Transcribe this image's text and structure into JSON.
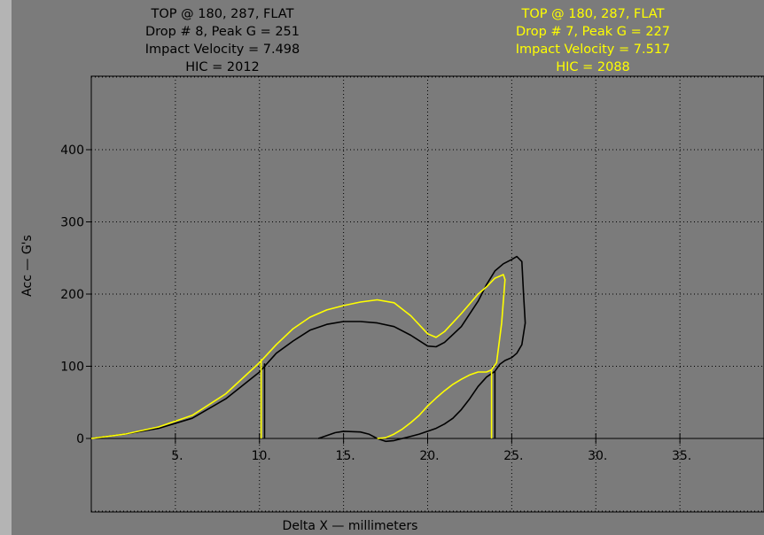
{
  "header": {
    "left": {
      "line1": "TOP @ 180, 287, FLAT",
      "line2": "Drop # 8, Peak G = 251",
      "line3": "Impact Velocity = 7.498",
      "line4": "HIC = 2012",
      "color": "#000000"
    },
    "right": {
      "line1": "TOP @ 180, 287, FLAT",
      "line2": "Drop # 7, Peak G = 227",
      "line3": "Impact Velocity = 7.517",
      "line4": "HIC = 2088",
      "color": "#ffff00"
    }
  },
  "chart_data": {
    "type": "line",
    "xlabel": "Delta X — millimeters",
    "ylabel": "Acc — G's",
    "xlim": [
      0,
      40
    ],
    "ylim": [
      -110,
      500
    ],
    "x_ticks": [
      5,
      10,
      15,
      20,
      25,
      30,
      35
    ],
    "x_tick_labels": [
      "5.",
      "10.",
      "15.",
      "20.",
      "25.",
      "30.",
      "35."
    ],
    "y_ticks": [
      0,
      100,
      200,
      300,
      400
    ],
    "y_tick_labels": [
      "0",
      "100",
      "200",
      "300",
      "400"
    ],
    "grid": true,
    "background": "#7b7b7b",
    "series": [
      {
        "color": "#000000",
        "points": [
          [
            0,
            0
          ],
          [
            2,
            6
          ],
          [
            4,
            14
          ],
          [
            6,
            28
          ],
          [
            8,
            55
          ],
          [
            10,
            92
          ],
          [
            11,
            118
          ],
          [
            12,
            135
          ],
          [
            13,
            150
          ],
          [
            14,
            158
          ],
          [
            15,
            162
          ],
          [
            16,
            162
          ],
          [
            17,
            160
          ],
          [
            18,
            155
          ],
          [
            19,
            143
          ],
          [
            20,
            128
          ],
          [
            20.5,
            127
          ],
          [
            21,
            133
          ],
          [
            22,
            155
          ],
          [
            23,
            190
          ],
          [
            23.5,
            213
          ],
          [
            24,
            232
          ],
          [
            24.5,
            242
          ],
          [
            25,
            248
          ],
          [
            25.3,
            252
          ],
          [
            25.6,
            245
          ],
          [
            25.7,
            200
          ],
          [
            25.8,
            160
          ],
          [
            25.6,
            130
          ],
          [
            25.3,
            118
          ],
          [
            25,
            112
          ],
          [
            24.6,
            108
          ],
          [
            24.3,
            103
          ],
          [
            24.0,
            93
          ],
          [
            23.5,
            85
          ],
          [
            23,
            72
          ],
          [
            22.5,
            55
          ],
          [
            22,
            40
          ],
          [
            21.5,
            28
          ],
          [
            21,
            20
          ],
          [
            20.5,
            14
          ],
          [
            20,
            10
          ],
          [
            19.5,
            6
          ],
          [
            19,
            3
          ],
          [
            18.5,
            0
          ],
          [
            18,
            -3
          ],
          [
            17.5,
            -4
          ],
          [
            17,
            0
          ],
          [
            16.5,
            6
          ],
          [
            16,
            9
          ],
          [
            15,
            10
          ],
          [
            14.5,
            8
          ],
          [
            14,
            4
          ],
          [
            13.5,
            0
          ]
        ],
        "drops": [
          [
            10.3,
            104
          ],
          [
            24.0,
            93
          ]
        ]
      },
      {
        "color": "#ffff00",
        "points": [
          [
            0,
            0
          ],
          [
            2,
            6
          ],
          [
            4,
            16
          ],
          [
            6,
            32
          ],
          [
            8,
            62
          ],
          [
            10,
            105
          ],
          [
            11,
            130
          ],
          [
            12,
            152
          ],
          [
            13,
            168
          ],
          [
            14,
            178
          ],
          [
            15,
            184
          ],
          [
            16,
            189
          ],
          [
            17,
            192
          ],
          [
            18,
            188
          ],
          [
            19,
            170
          ],
          [
            20,
            145
          ],
          [
            20.5,
            140
          ],
          [
            21,
            148
          ],
          [
            22,
            173
          ],
          [
            23,
            200
          ],
          [
            23.5,
            210
          ],
          [
            24,
            222
          ],
          [
            24.5,
            227
          ],
          [
            24.6,
            220
          ],
          [
            24.4,
            160
          ],
          [
            24.1,
            105
          ],
          [
            23.8,
            95
          ],
          [
            23.5,
            92
          ],
          [
            23,
            92
          ],
          [
            22.5,
            88
          ],
          [
            22,
            82
          ],
          [
            21.5,
            75
          ],
          [
            21,
            66
          ],
          [
            20.5,
            56
          ],
          [
            20,
            45
          ],
          [
            19.5,
            32
          ],
          [
            19,
            22
          ],
          [
            18.5,
            13
          ],
          [
            18,
            6
          ],
          [
            17.5,
            1
          ],
          [
            17,
            0
          ]
        ],
        "drops": [
          [
            10.1,
            110
          ],
          [
            23.8,
            95
          ]
        ]
      }
    ]
  }
}
